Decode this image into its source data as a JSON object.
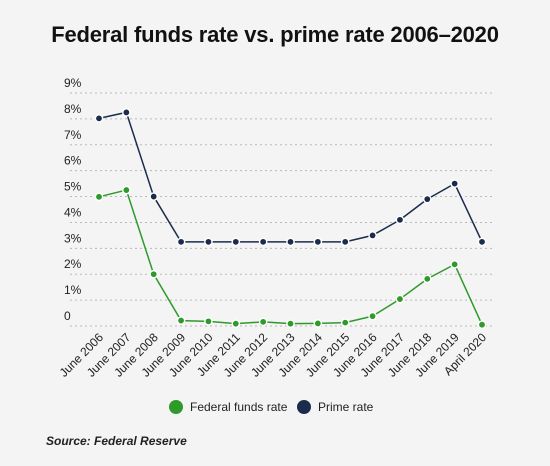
{
  "chart_data": {
    "type": "line",
    "title": "Federal funds rate vs. prime rate 2006–2020",
    "xlabel": "",
    "ylabel": "",
    "categories": [
      "June 2006",
      "June 2007",
      "June 2008",
      "June 2009",
      "June 2010",
      "June 2011",
      "June 2012",
      "June 2013",
      "June 2014",
      "June 2015",
      "June 2016",
      "June 2017",
      "June 2018",
      "June 2019",
      "April 2020"
    ],
    "series": [
      {
        "name": "Federal funds rate",
        "color": "#2e9a2a",
        "values": [
          4.99,
          5.25,
          2.0,
          0.21,
          0.18,
          0.09,
          0.16,
          0.09,
          0.1,
          0.13,
          0.38,
          1.04,
          1.82,
          2.38,
          0.05
        ]
      },
      {
        "name": "Prime rate",
        "color": "#1b2b4b",
        "values": [
          8.02,
          8.25,
          5.0,
          3.25,
          3.25,
          3.25,
          3.25,
          3.25,
          3.25,
          3.25,
          3.5,
          4.1,
          4.9,
          5.5,
          3.25
        ]
      }
    ],
    "ylim": [
      0,
      9
    ],
    "yticks": [
      {
        "value": 0,
        "label": "0"
      },
      {
        "value": 1,
        "label": "1%"
      },
      {
        "value": 2,
        "label": "2%"
      },
      {
        "value": 3,
        "label": "3%"
      },
      {
        "value": 4,
        "label": "4%"
      },
      {
        "value": 5,
        "label": "5%"
      },
      {
        "value": 6,
        "label": "6%"
      },
      {
        "value": 7,
        "label": "7%"
      },
      {
        "value": 8,
        "label": "8%"
      },
      {
        "value": 9,
        "label": "9%"
      }
    ],
    "grid": true,
    "grid_style": "dashed",
    "legend": "bottom-center",
    "source": "Source: Federal Reserve"
  }
}
